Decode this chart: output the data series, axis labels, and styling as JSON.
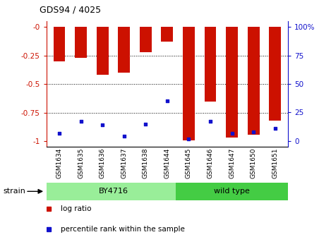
{
  "title": "GDS94 / 4025",
  "samples": [
    "GSM1634",
    "GSM1635",
    "GSM1636",
    "GSM1637",
    "GSM1638",
    "GSM1644",
    "GSM1645",
    "GSM1646",
    "GSM1647",
    "GSM1650",
    "GSM1651"
  ],
  "log_ratio": [
    -0.3,
    -0.27,
    -0.42,
    -0.4,
    -0.22,
    -0.13,
    -0.99,
    -0.65,
    -0.97,
    -0.94,
    -0.82
  ],
  "percentile_rank": [
    7,
    17,
    14,
    4,
    15,
    35,
    2,
    17,
    7,
    8,
    11
  ],
  "bar_color": "#cc1100",
  "dot_color": "#1111cc",
  "ylim_left": [
    -1.05,
    0.05
  ],
  "ylim_right": [
    -5.25,
    105
  ],
  "y_ticks_left": [
    0,
    -0.25,
    -0.5,
    -0.75,
    -1.0
  ],
  "y_ticks_right": [
    0,
    25,
    50,
    75,
    100
  ],
  "by4716_color": "#99ee99",
  "wildtype_color": "#44cc44",
  "strain_label": "strain",
  "legend_items": [
    {
      "label": "log ratio",
      "color": "#cc1100"
    },
    {
      "label": "percentile rank within the sample",
      "color": "#1111cc"
    }
  ],
  "bar_width": 0.55,
  "bg_color": "#ffffff",
  "left_tick_color": "#cc1100",
  "right_tick_color": "#1111cc",
  "n_by4716": 6,
  "n_wildtype": 5
}
